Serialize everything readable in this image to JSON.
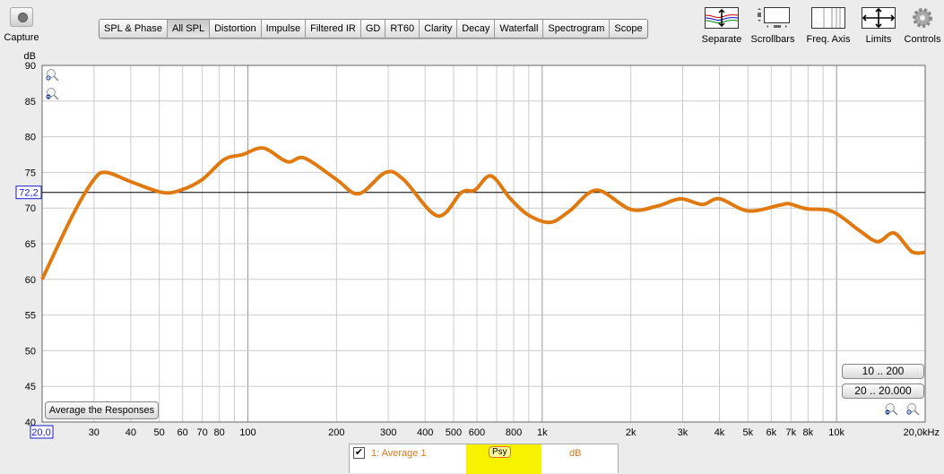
{
  "toolbar": {
    "capture": "Capture",
    "tabs": [
      "SPL & Phase",
      "All SPL",
      "Distortion",
      "Impulse",
      "Filtered IR",
      "GD",
      "RT60",
      "Clarity",
      "Decay",
      "Waterfall",
      "Spectrogram",
      "Scope"
    ],
    "active_tab": "All SPL",
    "tools": [
      "Separate",
      "Scrollbars",
      "Freq. Axis",
      "Limits",
      "Controls"
    ]
  },
  "buttons": {
    "average": "Average the Responses",
    "range1": "10 .. 200",
    "range2": "20 .. 20.000"
  },
  "legend": {
    "checked": true,
    "name": "1: Average 1",
    "smoothing": "Psy",
    "unit": "dB"
  },
  "colors": {
    "trace": "#e07a10",
    "highlight": "#f7f300",
    "cursor_label": "#1a1ad0"
  },
  "chart_data": {
    "type": "line",
    "ylabel": "dB",
    "ylim": [
      40,
      90
    ],
    "xlim": [
      20,
      20000
    ],
    "xscale": "log",
    "grid": true,
    "y_ticks": [
      "40",
      "45",
      "50",
      "55",
      "60",
      "65",
      "70",
      "75",
      "80",
      "85",
      "90"
    ],
    "x_ticks": [
      {
        "f": 30,
        "label": "30"
      },
      {
        "f": 40,
        "label": "40"
      },
      {
        "f": 50,
        "label": "50"
      },
      {
        "f": 60,
        "label": "60"
      },
      {
        "f": 70,
        "label": "70"
      },
      {
        "f": 80,
        "label": "80"
      },
      {
        "f": 100,
        "label": "100"
      },
      {
        "f": 200,
        "label": "200"
      },
      {
        "f": 300,
        "label": "300"
      },
      {
        "f": 400,
        "label": "400"
      },
      {
        "f": 500,
        "label": "500"
      },
      {
        "f": 600,
        "label": "600"
      },
      {
        "f": 800,
        "label": "800"
      },
      {
        "f": 1000,
        "label": "1k"
      },
      {
        "f": 2000,
        "label": "2k"
      },
      {
        "f": 3000,
        "label": "3k"
      },
      {
        "f": 4000,
        "label": "4k"
      },
      {
        "f": 5000,
        "label": "5k"
      },
      {
        "f": 6000,
        "label": "6k"
      },
      {
        "f": 7000,
        "label": "7k"
      },
      {
        "f": 8000,
        "label": "8k"
      },
      {
        "f": 10000,
        "label": "10k"
      }
    ],
    "x_start_label": "20,0",
    "x_end_label": "20,0kHz",
    "cursor_y": 72.2,
    "cursor_label": "72,2",
    "series": [
      {
        "name": "1: Average 1",
        "x": [
          20,
          25.4,
          30,
          33,
          40,
          51,
          59,
          70,
          83,
          96,
          113,
          136,
          156,
          200,
          238,
          294,
          338,
          441,
          532,
          590,
          670,
          780,
          900,
          1065,
          1240,
          1530,
          2000,
          2470,
          2950,
          3500,
          4000,
          5000,
          6400,
          6900,
          7900,
          9700,
          12000,
          13800,
          15700,
          18000,
          20000
        ],
        "y": [
          60,
          69,
          74,
          75,
          73.7,
          72.2,
          72.5,
          74,
          76.8,
          77.5,
          78.4,
          76.5,
          77,
          74,
          72,
          75,
          74,
          68.9,
          72.2,
          72.5,
          74.5,
          71.3,
          69,
          68,
          69.6,
          72.5,
          69.8,
          70.3,
          71.3,
          70.5,
          71.3,
          69.6,
          70.4,
          70.6,
          69.9,
          69.5,
          66.8,
          65.3,
          66.5,
          63.9,
          63.8
        ]
      }
    ]
  }
}
